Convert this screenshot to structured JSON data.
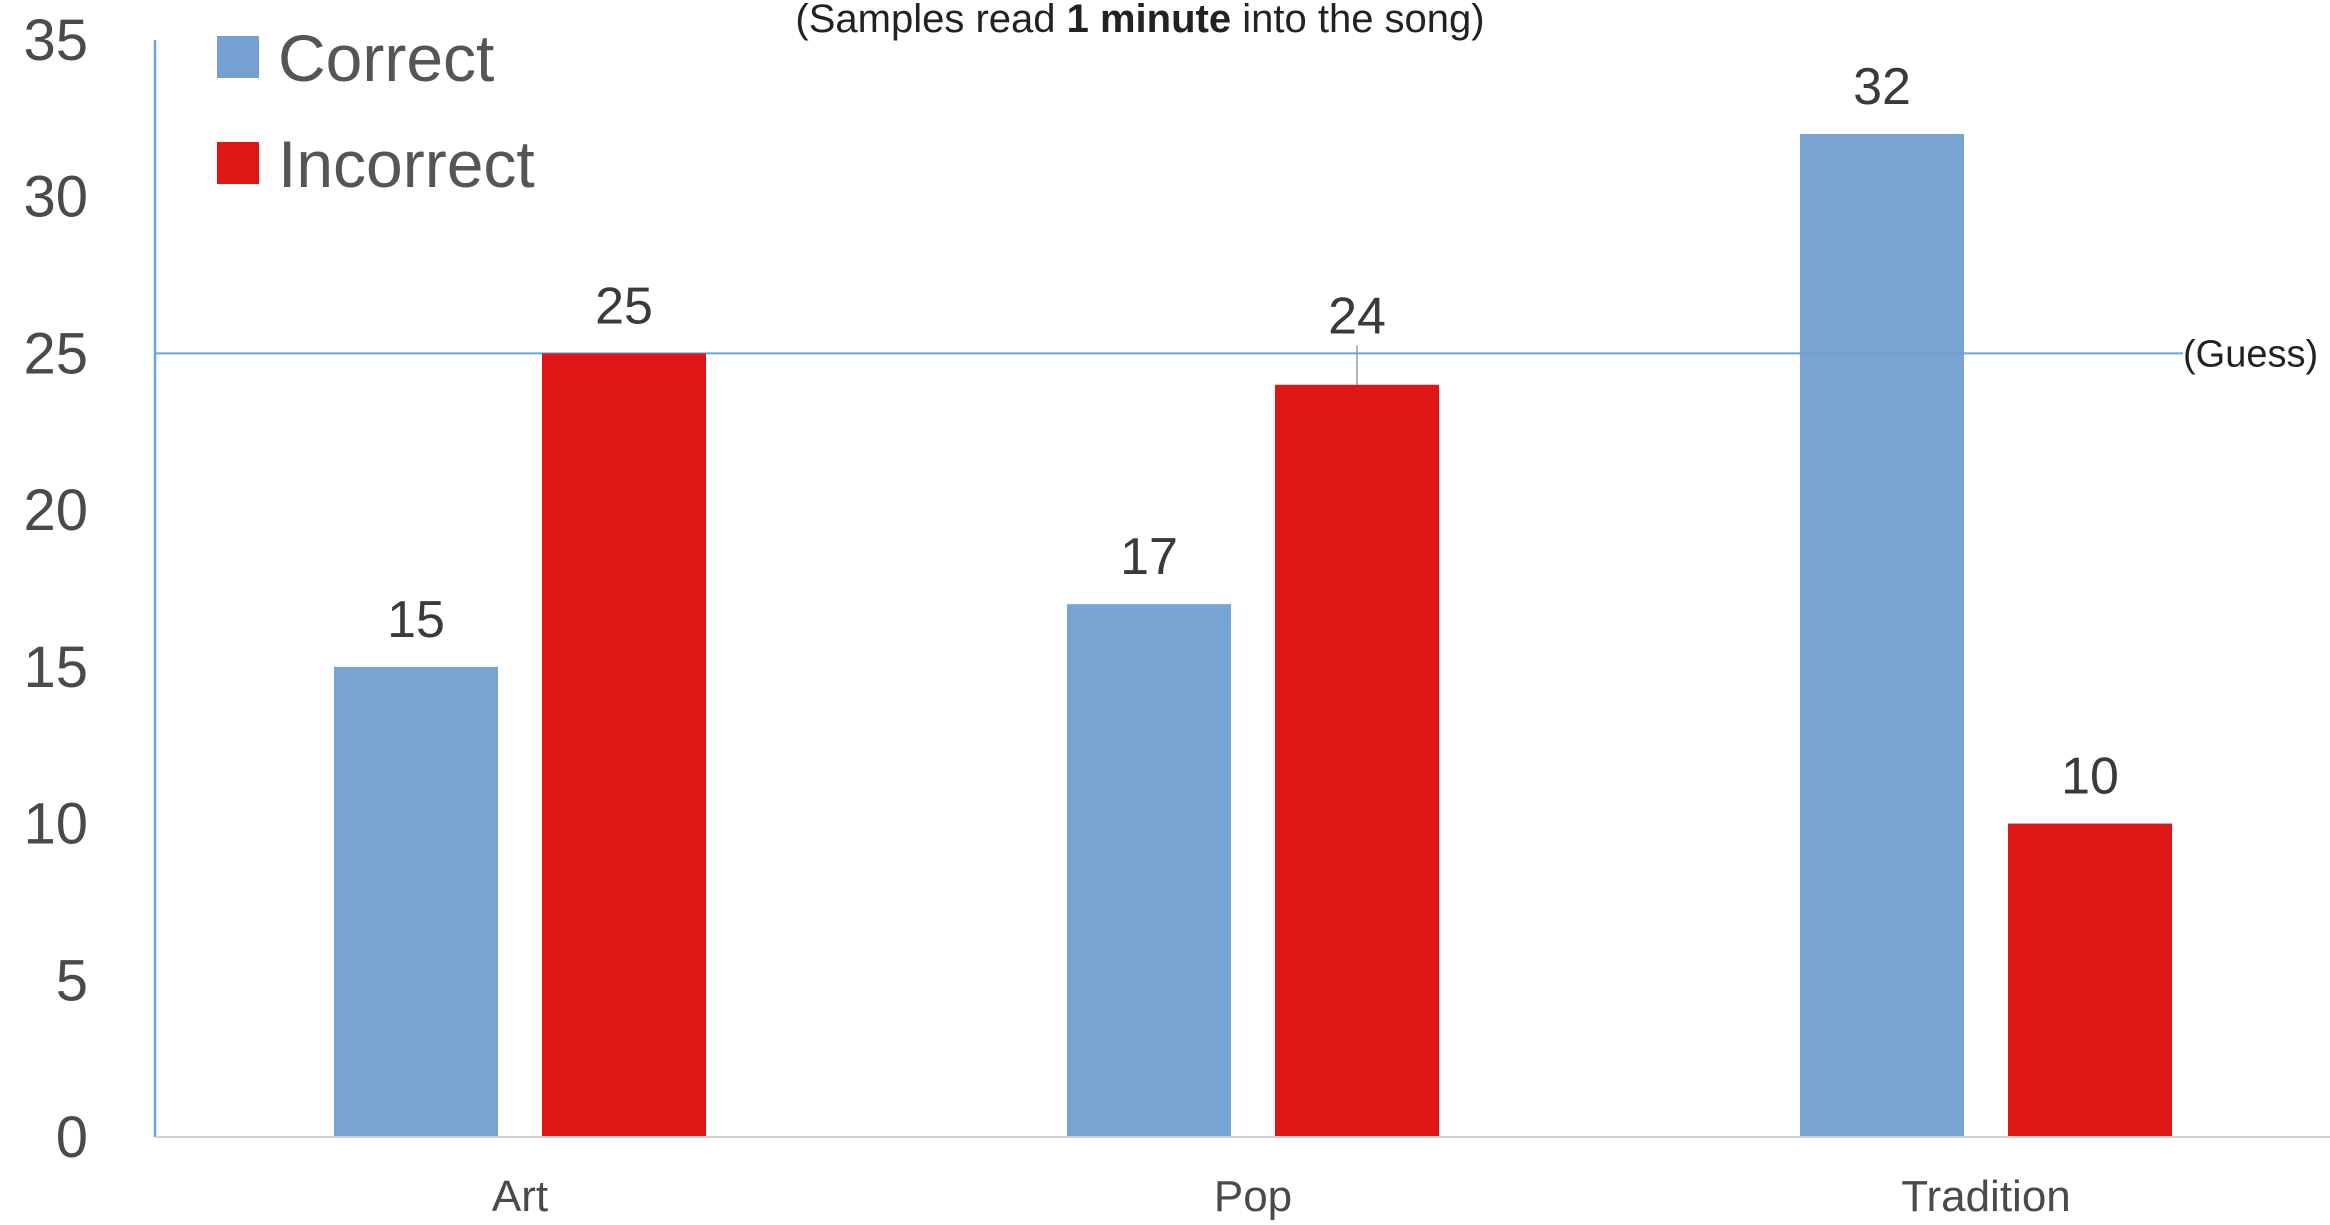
{
  "chart_data": {
    "type": "bar",
    "title": "",
    "subtitle": {
      "prefix": "(Samples read ",
      "emphasis": "1 minute",
      "suffix": " into the song)"
    },
    "xlabel": "",
    "ylabel": "",
    "categories": [
      "Art",
      "Pop",
      "Tradition"
    ],
    "series": [
      {
        "name": "Correct",
        "values": [
          15,
          17,
          32
        ],
        "color": "#74a1d2"
      },
      {
        "name": "Incorrect",
        "values": [
          25,
          24,
          10
        ],
        "color": "#de1616"
      }
    ],
    "ylim": [
      0,
      35
    ],
    "yticks": [
      0,
      5,
      10,
      15,
      20,
      25,
      30,
      35
    ],
    "reference_line": {
      "value": 25,
      "label": "(Guess)",
      "color": "#69a6d6"
    },
    "legend_position": "top-left",
    "grid": false,
    "axis_color": "#69a6d6"
  }
}
